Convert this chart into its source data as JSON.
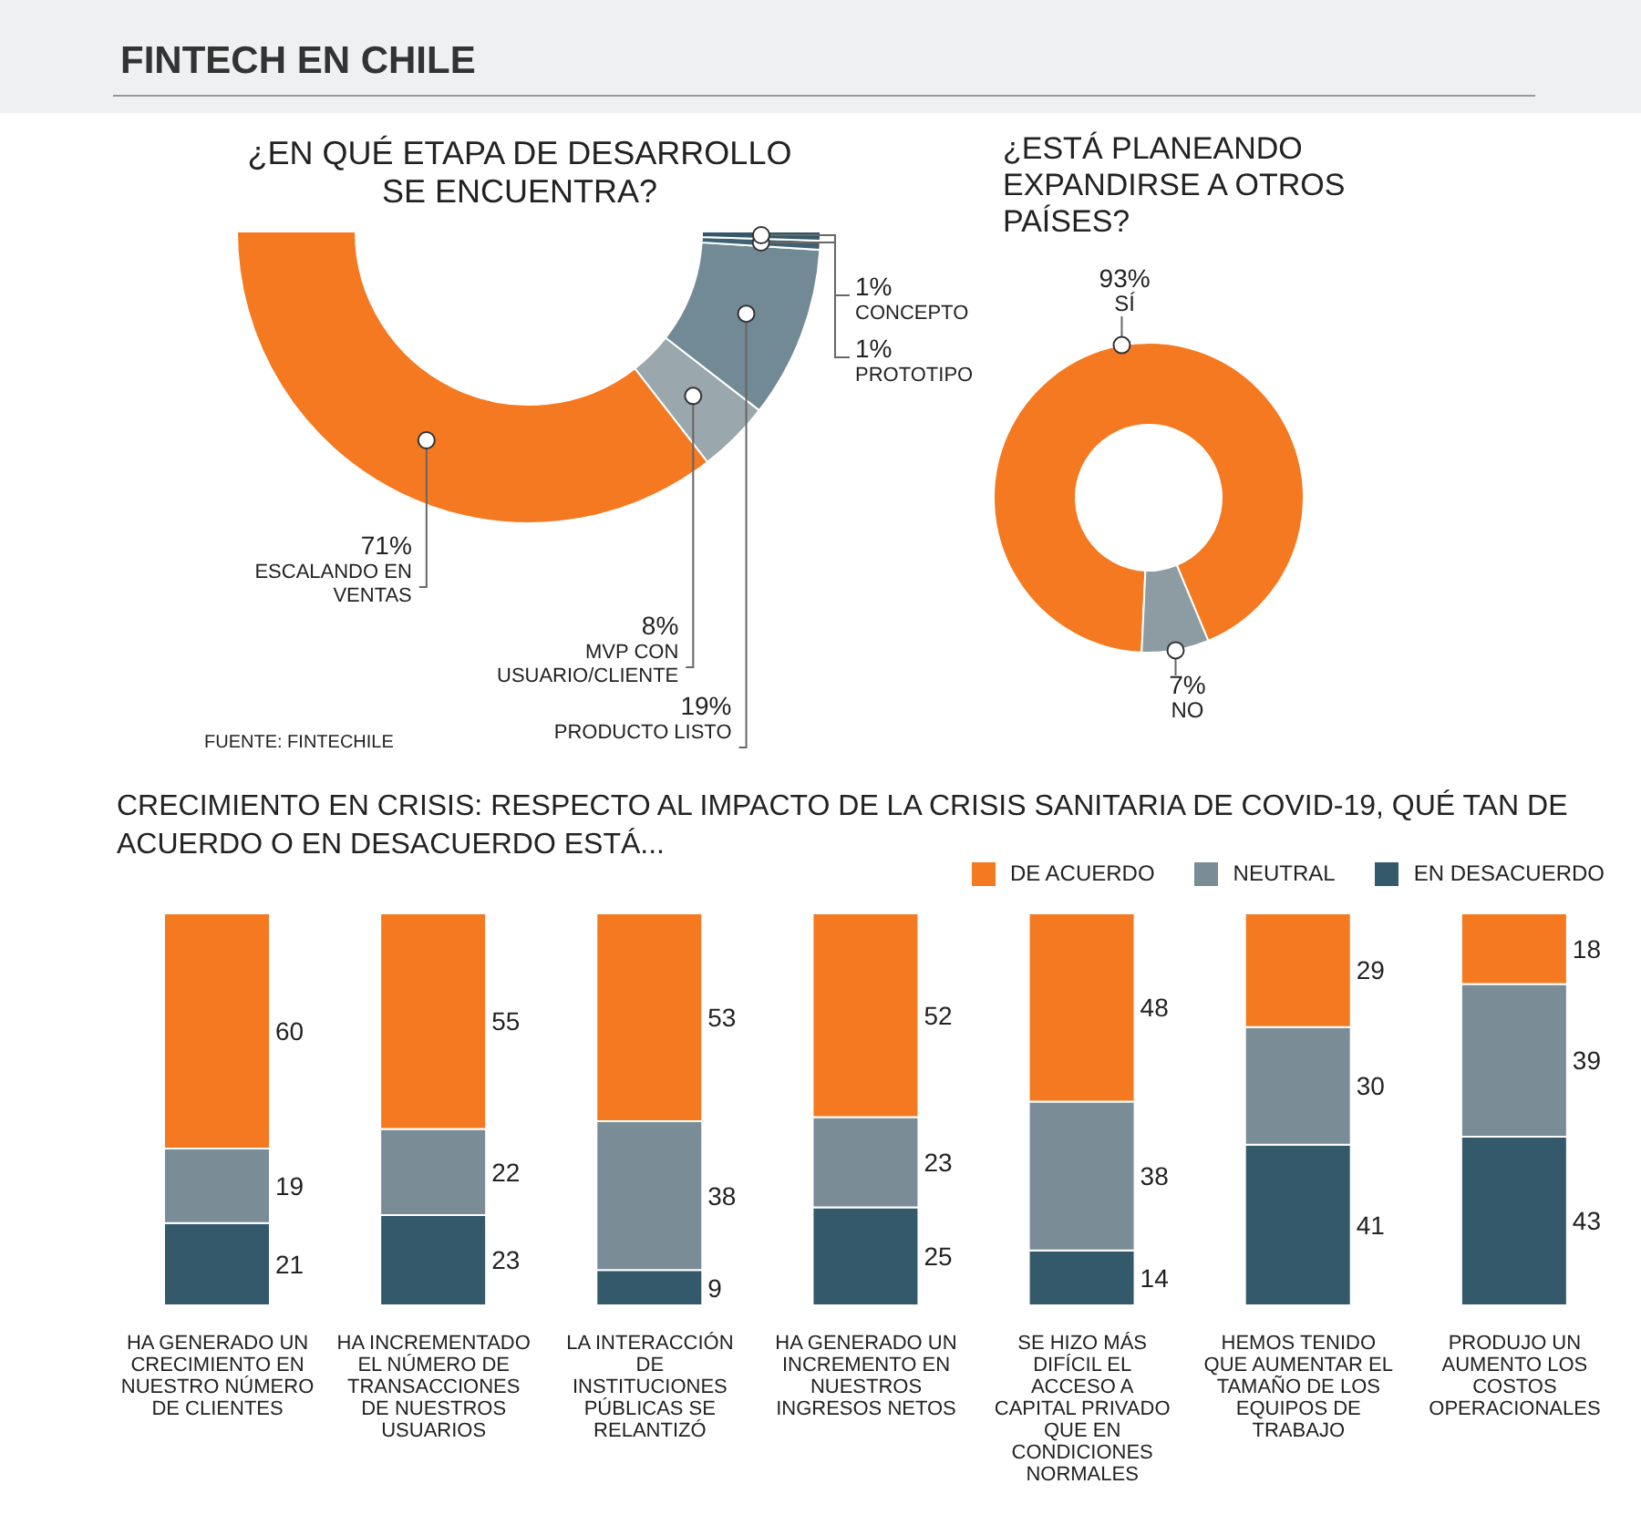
{
  "chart_data": [
    {
      "type": "donut",
      "title": "FINTECH EN CHILE",
      "subtitle": "¿EN QUÉ ETAPA DE DESARROLLO SE ENCUENTRA?",
      "categories": [
        "ESCALANDO EN VENTAS",
        "MVP CON USUARIO/CLIENTE",
        "PRODUCTO LISTO",
        "PROTOTIPO",
        "CONCEPTO"
      ],
      "values": [
        71,
        8,
        19,
        1,
        1
      ],
      "colors": [
        "#f47920",
        "#9aa7ac",
        "#728a96",
        "#3f6272",
        "#34586a"
      ],
      "value_labels": [
        "71%",
        "8%",
        "19%",
        "1%",
        "1%"
      ],
      "annotations": [
        "FUENTE: FINTECHILE"
      ]
    },
    {
      "type": "donut",
      "title": "¿ESTÁ PLANEANDO EXPANDIRSE A OTROS PAÍSES?",
      "categories": [
        "SÍ",
        "NO"
      ],
      "values": [
        93,
        7
      ],
      "colors": [
        "#f47920",
        "#8d9ca3"
      ],
      "value_labels": [
        "93%",
        "7%"
      ]
    },
    {
      "type": "bar",
      "stacked": true,
      "title": "CRECIMIENTO EN CRISIS: RESPECTO AL IMPACTO DE LA CRISIS SANITARIA DE COVID-19, QUÉ TAN DE ACUERDO O EN DESACUERDO ESTÁ...",
      "categories": [
        "HA GENERADO UN CRECIMIENTO EN NUESTRO NÚMERO DE CLIENTES",
        "HA INCREMENTADO EL NÚMERO DE TRANSACCIONES DE NUESTROS USUARIOS",
        "LA INTERACCIÓN DE INSTITUCIONES PÚBLICAS SE RELANTIZÓ",
        "HA GENERADO UN INCREMENTO EN NUESTROS INGRESOS NETOS",
        "SE HIZO MÁS DIFÍCIL EL ACCESO A CAPITAL PRIVADO QUE EN CONDICIONES NORMALES",
        "HEMOS TENIDO QUE AUMENTAR EL TAMAÑO DE LOS EQUIPOS DE TRABAJO",
        "PRODUJO UN AUMENTO LOS COSTOS OPERACIONALES"
      ],
      "series": [
        {
          "name": "EN DESACUERDO",
          "color": "#34596a",
          "values": [
            21,
            23,
            9,
            25,
            14,
            41,
            43
          ]
        },
        {
          "name": "NEUTRAL",
          "color": "#7a8c96",
          "values": [
            19,
            22,
            38,
            23,
            38,
            30,
            39
          ]
        },
        {
          "name": "DE ACUERDO",
          "color": "#f47920",
          "values": [
            60,
            55,
            53,
            52,
            48,
            29,
            18
          ]
        }
      ],
      "data_labels": true,
      "legend": "top right"
    }
  ]
}
